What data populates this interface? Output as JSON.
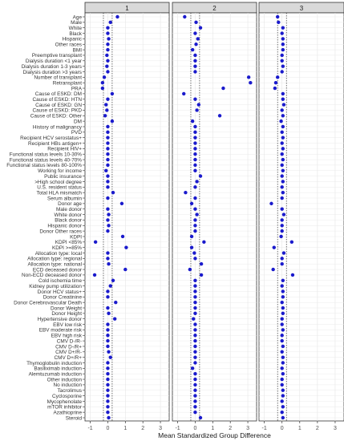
{
  "chart_data": {
    "type": "scatter",
    "facet_titles": [
      "1",
      "2",
      "3"
    ],
    "xlabel": "Mean Standardized Group Difference",
    "ylabel": "",
    "xlim": [
      -1.3,
      3.5
    ],
    "x_ticks": [
      -1,
      0,
      1,
      2,
      3
    ],
    "reference_lines": [
      -0.25,
      0.25
    ],
    "grid": true,
    "point_color": "#1a1acc",
    "categories": [
      "Age",
      "Male",
      "White",
      "Black",
      "Hispanic",
      "Other races",
      "BMI",
      "Preemptive transplant",
      "Dialysis duration <1 year",
      "Dialysis duration 1-3 years",
      "Dialysis duration >3 years",
      "Number of transplant",
      "Retransplant",
      "PRA",
      "Cause of ESKD: DM",
      "Cause of ESKD: HTN",
      "Cause of ESKD: GN",
      "Cause of ESKD: PKD",
      "Cause of ESKD: Other",
      "DM",
      "History of malignancy",
      "PVD",
      "Recipient HCV serostatus+",
      "Recipient HBs antigen+",
      "Recipient HIV+",
      "Functional status levels 10-30%",
      "Functional status levels 40-70%",
      "Functional status levels 80-100%",
      "Working for income",
      "Public insurance",
      ">High school degree",
      "U.S. resident status",
      "Total HLA mismatch",
      "Serum albumin",
      "Donor age",
      "Male donor",
      "White donor",
      "Black donor",
      "Hispanic donor",
      "Donor Other races",
      "KDPI",
      "KDPI <85%",
      "KDPI >=85%",
      "Allocation type: local",
      "Allocation type: regional",
      "Allocation type: national",
      "ECD deceased donor",
      "Non-ECD deceased donor",
      "Cold ischemia time",
      "Kidney pump utilization",
      "Donor HCV status+",
      "Donor Creatinine",
      "Donor Cerebrovascular Death",
      "Donor Weight",
      "Donor Height",
      "Hypertensive donor",
      "EBV low risk",
      "EBV moderate risk",
      "EBV high risk",
      "CMV D-/R-",
      "CMV D-/R+",
      "CMV D+/R-",
      "CMV D+/R+",
      "Thymoglobulin induction",
      "Basiliximab induction",
      "Alemtuzumab induction",
      "Other induction",
      "No induction",
      "Tacrolimus",
      "Cyclosporine",
      "Mycophenolate",
      "mTOR inhibitor",
      "Azathioprine",
      "Steroid"
    ],
    "series": [
      {
        "values": [
          0.55,
          0.15,
          0.0,
          0.0,
          0.05,
          0.0,
          0.0,
          -0.05,
          0.0,
          -0.05,
          0.0,
          -0.2,
          -0.3,
          -0.3,
          0.25,
          0.0,
          -0.1,
          -0.05,
          -0.15,
          0.25,
          0.0,
          0.0,
          0.0,
          0.0,
          0.0,
          0.0,
          0.0,
          0.0,
          -0.1,
          0.0,
          0.0,
          0.0,
          0.3,
          0.0,
          0.8,
          0.0,
          0.05,
          0.0,
          0.05,
          0.0,
          0.85,
          -0.7,
          1.05,
          0.0,
          0.0,
          0.05,
          1.0,
          -0.75,
          0.3,
          0.15,
          0.0,
          0.0,
          0.45,
          0.0,
          0.05,
          0.4,
          0.0,
          0.0,
          0.0,
          0.0,
          0.0,
          0.05,
          0.15,
          0.0,
          0.0,
          0.0,
          0.0,
          0.0,
          0.0,
          0.0,
          0.0,
          0.0,
          0.0,
          0.05
        ]
      },
      {
        "values": [
          -0.6,
          0.05,
          0.3,
          0.0,
          0.15,
          0.05,
          -0.15,
          0.0,
          0.0,
          0.0,
          0.0,
          3.05,
          3.15,
          1.6,
          -0.65,
          0.0,
          0.2,
          0.1,
          1.4,
          -0.15,
          0.0,
          0.0,
          0.0,
          0.0,
          0.0,
          0.0,
          0.0,
          0.0,
          0.0,
          0.3,
          0.1,
          0.0,
          -0.55,
          0.0,
          -0.2,
          0.0,
          0.1,
          0.0,
          0.0,
          0.0,
          -0.2,
          0.5,
          -0.2,
          -0.05,
          0.0,
          0.35,
          -0.3,
          0.35,
          0.0,
          0.0,
          0.0,
          0.0,
          0.0,
          0.0,
          0.0,
          -0.1,
          0.0,
          0.0,
          0.0,
          0.0,
          0.0,
          0.0,
          0.0,
          0.0,
          -0.15,
          0.0,
          0.0,
          0.0,
          0.0,
          0.0,
          0.0,
          0.0,
          0.0,
          0.3
        ]
      },
      {
        "values": [
          -0.25,
          -0.2,
          0.05,
          0.0,
          0.05,
          0.05,
          0.05,
          0.0,
          0.0,
          0.05,
          0.0,
          -0.25,
          -0.35,
          -0.4,
          0.05,
          0.05,
          0.1,
          0.0,
          0.05,
          -0.05,
          0.05,
          0.0,
          0.05,
          0.0,
          0.05,
          0.0,
          0.05,
          0.0,
          0.05,
          0.0,
          0.05,
          0.0,
          0.05,
          0.0,
          -0.6,
          0.0,
          0.1,
          0.0,
          0.0,
          0.0,
          -0.05,
          0.55,
          -0.45,
          0.1,
          0.0,
          0.0,
          -0.5,
          0.6,
          0.05,
          0.0,
          0.05,
          0.05,
          0.0,
          0.05,
          0.05,
          0.0,
          0.0,
          0.05,
          0.0,
          0.0,
          0.05,
          0.0,
          0.05,
          0.05,
          0.0,
          0.05,
          0.0,
          0.0,
          0.05,
          0.05,
          0.0,
          0.05,
          0.0,
          0.05
        ]
      }
    ]
  }
}
